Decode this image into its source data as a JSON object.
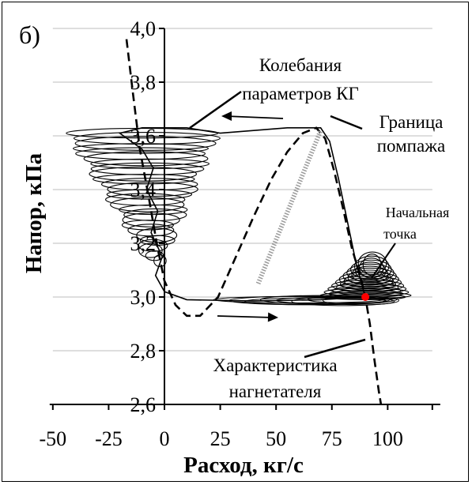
{
  "panel_label": "б)",
  "chart_data": {
    "type": "line",
    "xlabel": "Расход, кг/с",
    "ylabel": "Напор,  кПа",
    "xlim": [
      -50,
      125
    ],
    "ylim": [
      2.6,
      4.0
    ],
    "x_ticks": [
      -50,
      -25,
      0,
      25,
      50,
      75,
      100
    ],
    "x_tick_labels": [
      "-50",
      "-25",
      "0",
      "25",
      "50",
      "75",
      "100"
    ],
    "y_ticks": [
      2.6,
      2.8,
      3.0,
      3.2,
      3.4,
      3.6,
      3.8,
      4.0
    ],
    "y_tick_labels": [
      "2,6",
      "2,8",
      "3,0",
      "3,2",
      "3,4",
      "3,6",
      "3,8",
      "4,0"
    ],
    "grid": "horizontal",
    "series": [
      {
        "style": "dashed",
        "points": [
          [
            -17,
            3.96
          ],
          [
            -14,
            3.75
          ],
          [
            -11,
            3.55
          ],
          [
            -7,
            3.37
          ],
          [
            -3,
            3.18
          ],
          [
            0,
            3.06
          ],
          [
            5,
            2.97
          ],
          [
            10,
            2.93
          ],
          [
            16,
            2.93
          ],
          [
            24,
            3.0
          ],
          [
            32,
            3.15
          ],
          [
            40,
            3.3
          ],
          [
            48,
            3.44
          ],
          [
            55,
            3.54
          ],
          [
            62,
            3.61
          ],
          [
            68,
            3.63
          ],
          [
            72,
            3.59
          ],
          [
            76,
            3.47
          ],
          [
            80,
            3.33
          ],
          [
            84,
            3.18
          ],
          [
            88,
            3.07
          ],
          [
            90,
            3.0
          ],
          [
            92,
            2.9
          ],
          [
            94,
            2.77
          ],
          [
            96,
            2.65
          ],
          [
            97,
            2.6
          ]
        ]
      },
      {
        "style": "solid",
        "points": [
          [
            90,
            3.0
          ],
          [
            86,
            3.12
          ],
          [
            82,
            3.28
          ],
          [
            78,
            3.44
          ],
          [
            74,
            3.58
          ],
          [
            70,
            3.63
          ],
          [
            55,
            3.63
          ],
          [
            40,
            3.62
          ],
          [
            25,
            3.61
          ],
          [
            10,
            3.63
          ],
          [
            0,
            3.63
          ],
          [
            -10,
            3.63
          ],
          [
            -20,
            3.61
          ],
          [
            -10,
            3.55
          ],
          [
            -5,
            3.48
          ],
          [
            -8,
            3.4
          ],
          [
            -3,
            3.32
          ],
          [
            -6,
            3.24
          ],
          [
            -1,
            3.15
          ],
          [
            -4,
            3.08
          ],
          [
            0,
            3.02
          ],
          [
            10,
            2.99
          ],
          [
            40,
            2.985
          ],
          [
            70,
            2.99
          ],
          [
            90,
            3.0
          ]
        ]
      }
    ],
    "surge_line": [
      [
        42,
        3.05
      ],
      [
        70,
        3.62
      ]
    ],
    "start_point": {
      "x": 90,
      "y": 3.0,
      "color": "#ff0000"
    },
    "annotations": [
      {
        "text": "Колебания"
      },
      {
        "text": "параметров КГ"
      },
      {
        "text": "Граница"
      },
      {
        "text": "помпажа"
      },
      {
        "text": "Начальная"
      },
      {
        "text": "точка"
      },
      {
        "text": "Характеристика"
      },
      {
        "text": "нагнетателя"
      }
    ]
  }
}
